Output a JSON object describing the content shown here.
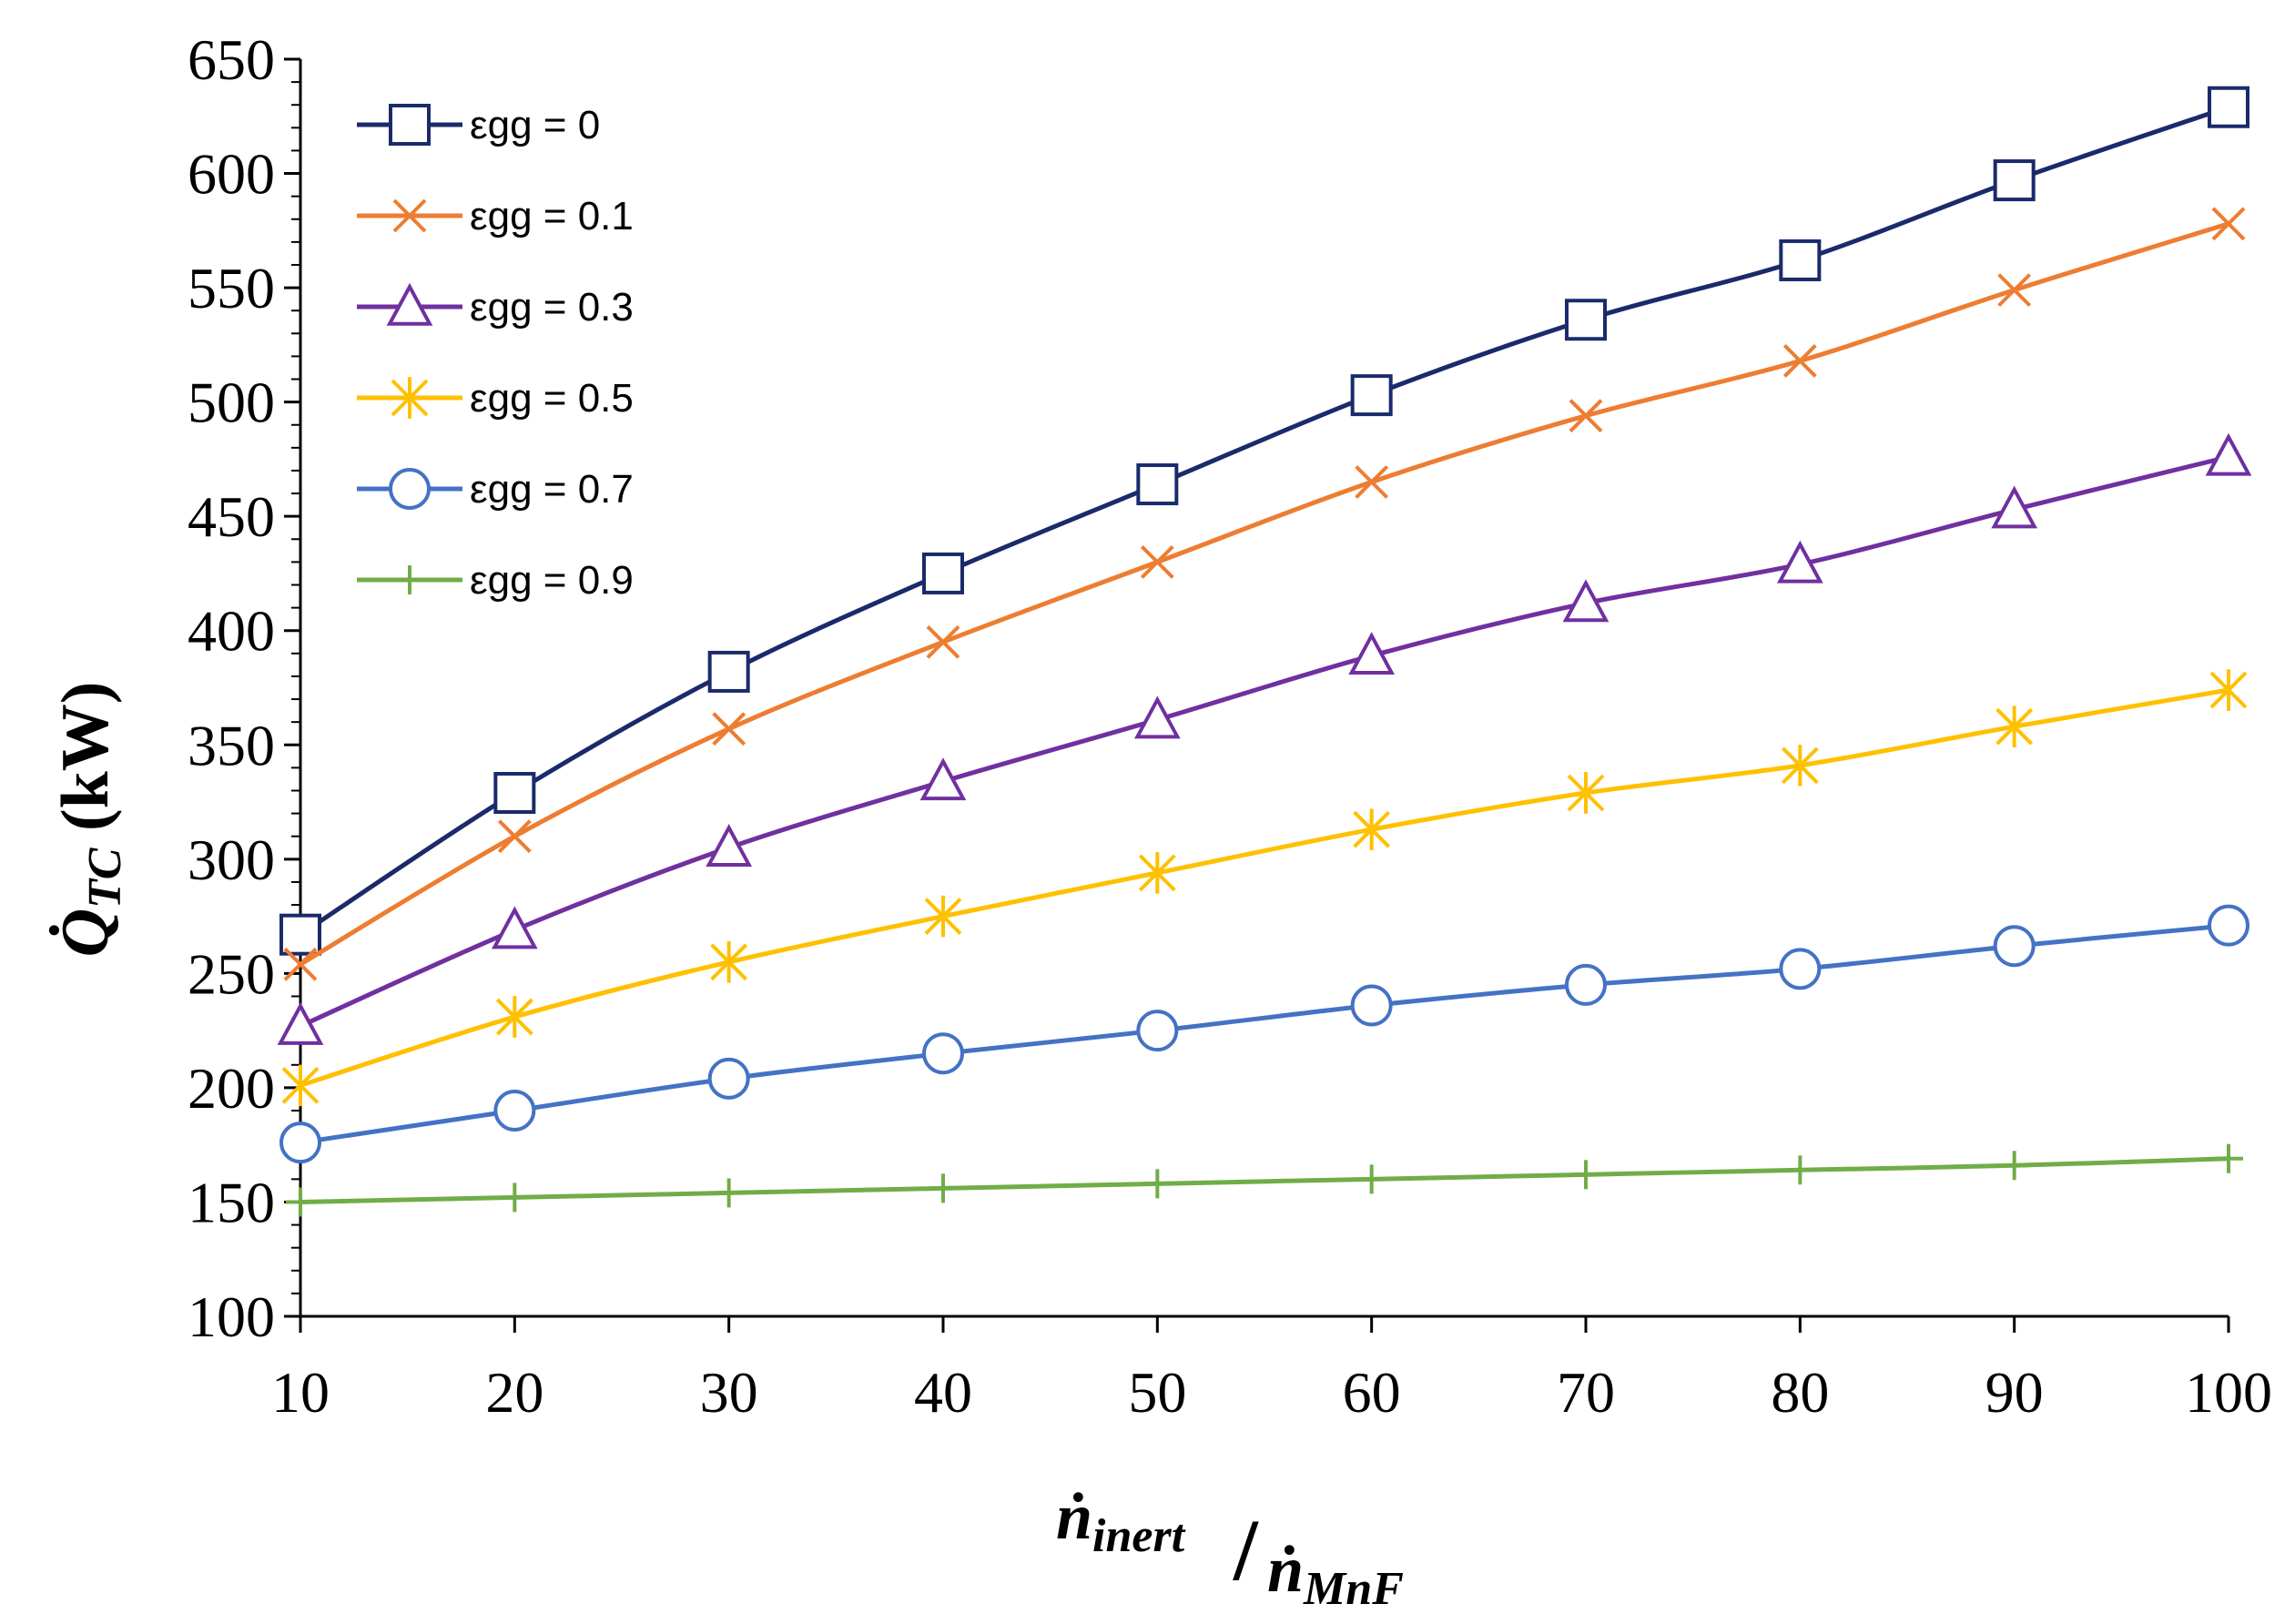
{
  "chart_data": {
    "type": "line",
    "title": "",
    "x": [
      10,
      20,
      30,
      40,
      50,
      60,
      70,
      80,
      90,
      100
    ],
    "xlim": [
      10,
      100
    ],
    "ylim": [
      100,
      650
    ],
    "xticks": [
      "10",
      "20",
      "30",
      "40",
      "50",
      "60",
      "70",
      "80",
      "90",
      "100"
    ],
    "yticks": [
      "100",
      "150",
      "200",
      "250",
      "300",
      "350",
      "400",
      "450",
      "500",
      "550",
      "600",
      "650"
    ],
    "xlabel": {
      "main": "ṅ",
      "sub": "inert",
      "slash": "/",
      "main2": "ṅ",
      "sub2": "MnF"
    },
    "ylabel": {
      "main": "Q̇",
      "sub": "TC",
      "unit": " (kW)"
    },
    "grid": false,
    "legend_position": "top-left",
    "series": [
      {
        "name": "εgg = 0",
        "color": "#1b2a6b",
        "marker": "square",
        "values": [
          267,
          329,
          382,
          425,
          464,
          503,
          536,
          562,
          597,
          629
        ]
      },
      {
        "name": "εgg = 0.1",
        "color": "#ed7d31",
        "marker": "x",
        "values": [
          254,
          310,
          357,
          395,
          430,
          465,
          494,
          518,
          549,
          578
        ]
      },
      {
        "name": "εgg = 0.3",
        "color": "#7030a0",
        "marker": "triangle",
        "values": [
          227,
          269,
          305,
          334,
          361,
          389,
          412,
          429,
          453,
          476
        ]
      },
      {
        "name": "εgg = 0.5",
        "color": "#ffc000",
        "marker": "star",
        "values": [
          201,
          231,
          255,
          275,
          294,
          313,
          329,
          341,
          358,
          374
        ]
      },
      {
        "name": "εgg = 0.7",
        "color": "#4472c4",
        "marker": "circle",
        "values": [
          176,
          190,
          204,
          215,
          225,
          236,
          245,
          252,
          262,
          271
        ]
      },
      {
        "name": "εgg = 0.9",
        "color": "#70ad47",
        "marker": "plus",
        "values": [
          150,
          152,
          154,
          156,
          158,
          160,
          162,
          164,
          166,
          169
        ]
      }
    ]
  }
}
